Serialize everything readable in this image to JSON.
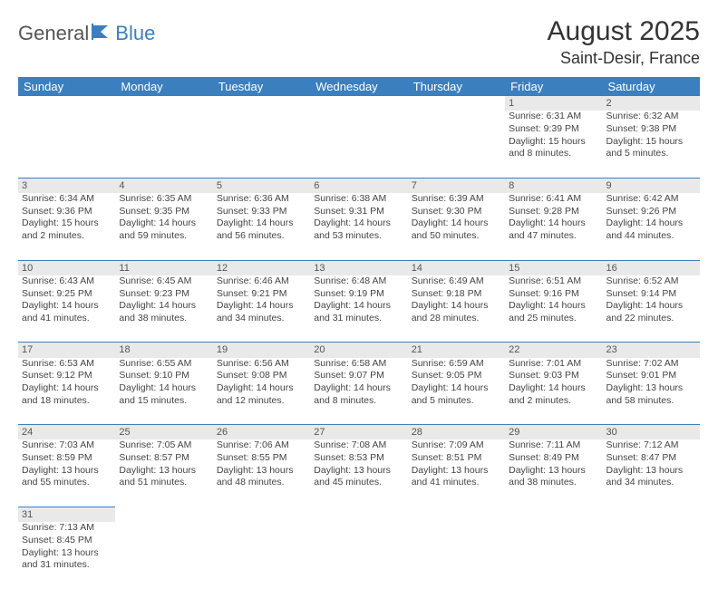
{
  "logo": {
    "part1": "General",
    "part2": "Blue"
  },
  "title": "August 2025",
  "location": "Saint-Desir, France",
  "weekdays": [
    "Sunday",
    "Monday",
    "Tuesday",
    "Wednesday",
    "Thursday",
    "Friday",
    "Saturday"
  ],
  "colors": {
    "header_bg": "#3b7fbf",
    "daynum_bg": "#e9e9e9",
    "text": "#444"
  },
  "weeks": [
    [
      null,
      null,
      null,
      null,
      null,
      {
        "n": "1",
        "sr": "Sunrise: 6:31 AM",
        "ss": "Sunset: 9:39 PM",
        "dl1": "Daylight: 15 hours",
        "dl2": "and 8 minutes."
      },
      {
        "n": "2",
        "sr": "Sunrise: 6:32 AM",
        "ss": "Sunset: 9:38 PM",
        "dl1": "Daylight: 15 hours",
        "dl2": "and 5 minutes."
      }
    ],
    [
      {
        "n": "3",
        "sr": "Sunrise: 6:34 AM",
        "ss": "Sunset: 9:36 PM",
        "dl1": "Daylight: 15 hours",
        "dl2": "and 2 minutes."
      },
      {
        "n": "4",
        "sr": "Sunrise: 6:35 AM",
        "ss": "Sunset: 9:35 PM",
        "dl1": "Daylight: 14 hours",
        "dl2": "and 59 minutes."
      },
      {
        "n": "5",
        "sr": "Sunrise: 6:36 AM",
        "ss": "Sunset: 9:33 PM",
        "dl1": "Daylight: 14 hours",
        "dl2": "and 56 minutes."
      },
      {
        "n": "6",
        "sr": "Sunrise: 6:38 AM",
        "ss": "Sunset: 9:31 PM",
        "dl1": "Daylight: 14 hours",
        "dl2": "and 53 minutes."
      },
      {
        "n": "7",
        "sr": "Sunrise: 6:39 AM",
        "ss": "Sunset: 9:30 PM",
        "dl1": "Daylight: 14 hours",
        "dl2": "and 50 minutes."
      },
      {
        "n": "8",
        "sr": "Sunrise: 6:41 AM",
        "ss": "Sunset: 9:28 PM",
        "dl1": "Daylight: 14 hours",
        "dl2": "and 47 minutes."
      },
      {
        "n": "9",
        "sr": "Sunrise: 6:42 AM",
        "ss": "Sunset: 9:26 PM",
        "dl1": "Daylight: 14 hours",
        "dl2": "and 44 minutes."
      }
    ],
    [
      {
        "n": "10",
        "sr": "Sunrise: 6:43 AM",
        "ss": "Sunset: 9:25 PM",
        "dl1": "Daylight: 14 hours",
        "dl2": "and 41 minutes."
      },
      {
        "n": "11",
        "sr": "Sunrise: 6:45 AM",
        "ss": "Sunset: 9:23 PM",
        "dl1": "Daylight: 14 hours",
        "dl2": "and 38 minutes."
      },
      {
        "n": "12",
        "sr": "Sunrise: 6:46 AM",
        "ss": "Sunset: 9:21 PM",
        "dl1": "Daylight: 14 hours",
        "dl2": "and 34 minutes."
      },
      {
        "n": "13",
        "sr": "Sunrise: 6:48 AM",
        "ss": "Sunset: 9:19 PM",
        "dl1": "Daylight: 14 hours",
        "dl2": "and 31 minutes."
      },
      {
        "n": "14",
        "sr": "Sunrise: 6:49 AM",
        "ss": "Sunset: 9:18 PM",
        "dl1": "Daylight: 14 hours",
        "dl2": "and 28 minutes."
      },
      {
        "n": "15",
        "sr": "Sunrise: 6:51 AM",
        "ss": "Sunset: 9:16 PM",
        "dl1": "Daylight: 14 hours",
        "dl2": "and 25 minutes."
      },
      {
        "n": "16",
        "sr": "Sunrise: 6:52 AM",
        "ss": "Sunset: 9:14 PM",
        "dl1": "Daylight: 14 hours",
        "dl2": "and 22 minutes."
      }
    ],
    [
      {
        "n": "17",
        "sr": "Sunrise: 6:53 AM",
        "ss": "Sunset: 9:12 PM",
        "dl1": "Daylight: 14 hours",
        "dl2": "and 18 minutes."
      },
      {
        "n": "18",
        "sr": "Sunrise: 6:55 AM",
        "ss": "Sunset: 9:10 PM",
        "dl1": "Daylight: 14 hours",
        "dl2": "and 15 minutes."
      },
      {
        "n": "19",
        "sr": "Sunrise: 6:56 AM",
        "ss": "Sunset: 9:08 PM",
        "dl1": "Daylight: 14 hours",
        "dl2": "and 12 minutes."
      },
      {
        "n": "20",
        "sr": "Sunrise: 6:58 AM",
        "ss": "Sunset: 9:07 PM",
        "dl1": "Daylight: 14 hours",
        "dl2": "and 8 minutes."
      },
      {
        "n": "21",
        "sr": "Sunrise: 6:59 AM",
        "ss": "Sunset: 9:05 PM",
        "dl1": "Daylight: 14 hours",
        "dl2": "and 5 minutes."
      },
      {
        "n": "22",
        "sr": "Sunrise: 7:01 AM",
        "ss": "Sunset: 9:03 PM",
        "dl1": "Daylight: 14 hours",
        "dl2": "and 2 minutes."
      },
      {
        "n": "23",
        "sr": "Sunrise: 7:02 AM",
        "ss": "Sunset: 9:01 PM",
        "dl1": "Daylight: 13 hours",
        "dl2": "and 58 minutes."
      }
    ],
    [
      {
        "n": "24",
        "sr": "Sunrise: 7:03 AM",
        "ss": "Sunset: 8:59 PM",
        "dl1": "Daylight: 13 hours",
        "dl2": "and 55 minutes."
      },
      {
        "n": "25",
        "sr": "Sunrise: 7:05 AM",
        "ss": "Sunset: 8:57 PM",
        "dl1": "Daylight: 13 hours",
        "dl2": "and 51 minutes."
      },
      {
        "n": "26",
        "sr": "Sunrise: 7:06 AM",
        "ss": "Sunset: 8:55 PM",
        "dl1": "Daylight: 13 hours",
        "dl2": "and 48 minutes."
      },
      {
        "n": "27",
        "sr": "Sunrise: 7:08 AM",
        "ss": "Sunset: 8:53 PM",
        "dl1": "Daylight: 13 hours",
        "dl2": "and 45 minutes."
      },
      {
        "n": "28",
        "sr": "Sunrise: 7:09 AM",
        "ss": "Sunset: 8:51 PM",
        "dl1": "Daylight: 13 hours",
        "dl2": "and 41 minutes."
      },
      {
        "n": "29",
        "sr": "Sunrise: 7:11 AM",
        "ss": "Sunset: 8:49 PM",
        "dl1": "Daylight: 13 hours",
        "dl2": "and 38 minutes."
      },
      {
        "n": "30",
        "sr": "Sunrise: 7:12 AM",
        "ss": "Sunset: 8:47 PM",
        "dl1": "Daylight: 13 hours",
        "dl2": "and 34 minutes."
      }
    ],
    [
      {
        "n": "31",
        "sr": "Sunrise: 7:13 AM",
        "ss": "Sunset: 8:45 PM",
        "dl1": "Daylight: 13 hours",
        "dl2": "and 31 minutes."
      },
      null,
      null,
      null,
      null,
      null,
      null
    ]
  ]
}
